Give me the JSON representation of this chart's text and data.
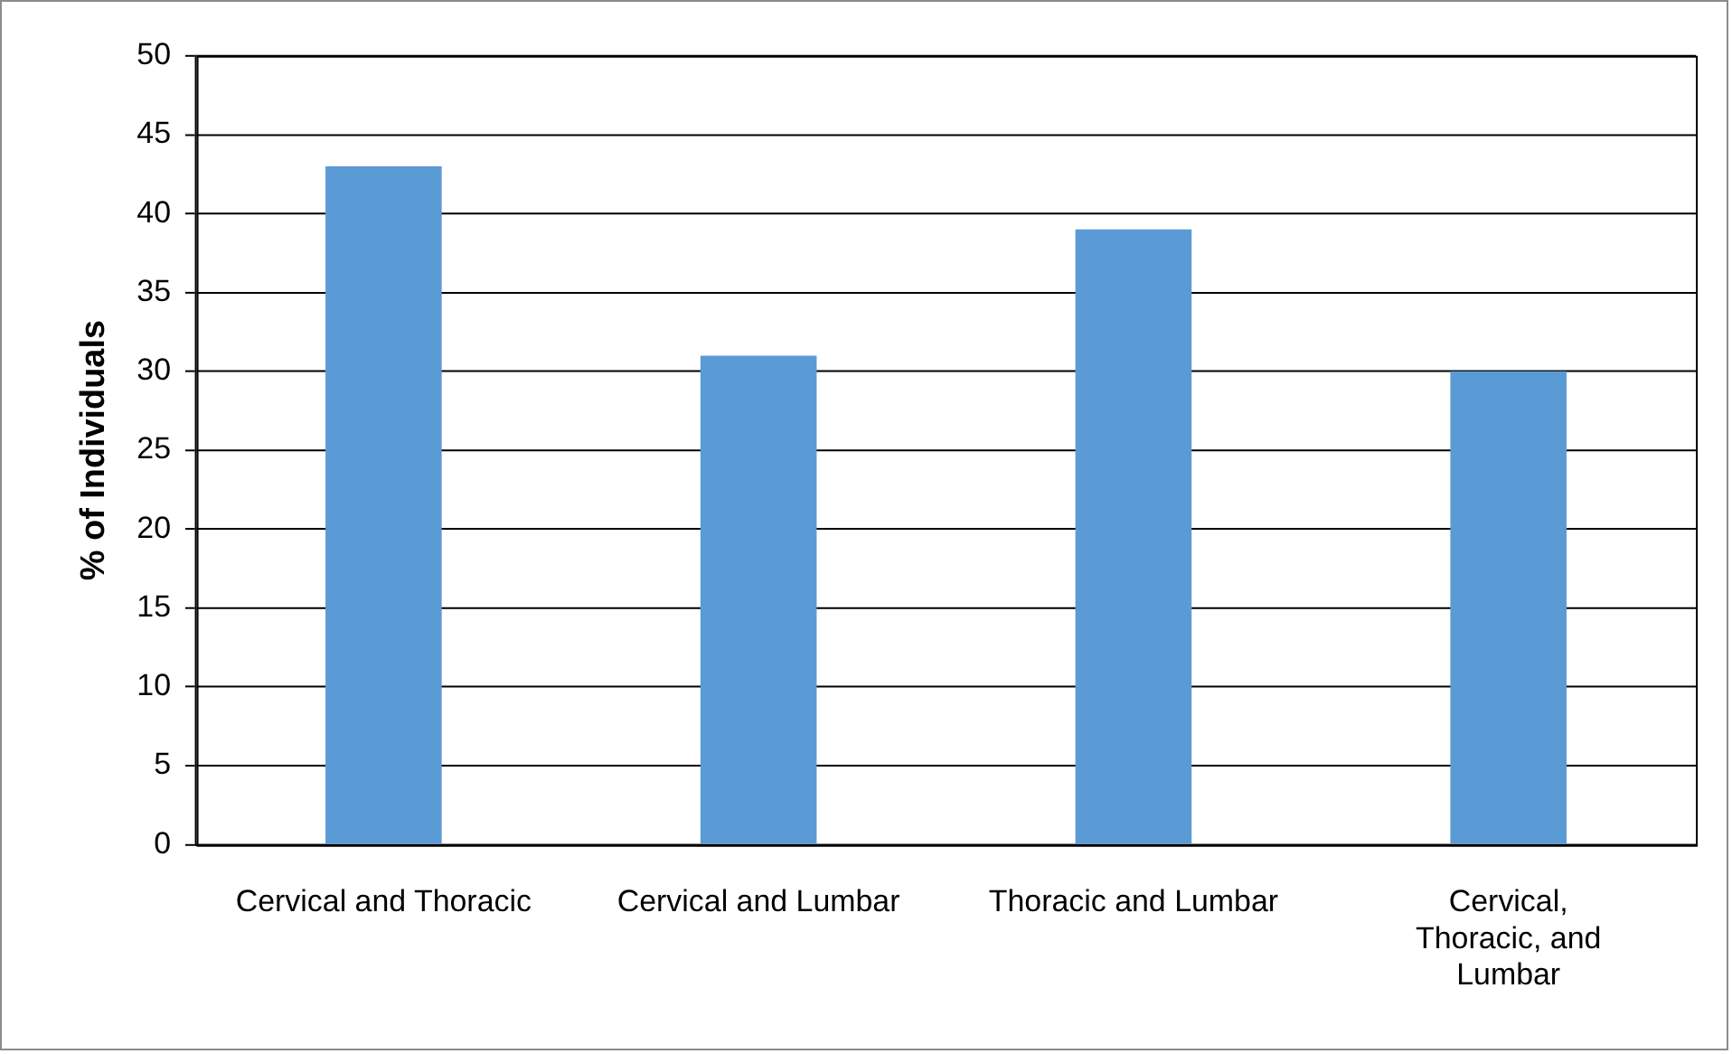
{
  "chart_data": {
    "type": "bar",
    "ylabel": "% of Individuals",
    "categories": [
      "Cervical and Thoracic",
      "Cervical and Lumbar",
      "Thoracic and Lumbar",
      "Cervical, Thoracic, and Lumbar"
    ],
    "values": [
      43,
      31,
      39,
      30
    ],
    "color": "#5b9bd5",
    "ylim": [
      0,
      50
    ],
    "yticks": [
      0,
      5,
      10,
      15,
      20,
      25,
      30,
      35,
      40,
      45,
      50
    ],
    "grid": "y"
  }
}
